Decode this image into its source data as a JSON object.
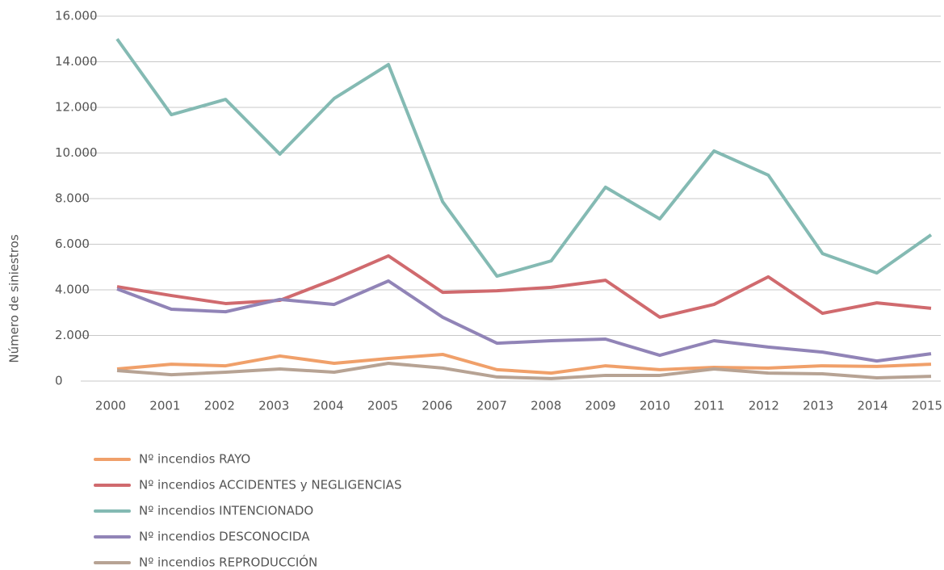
{
  "chart_data": {
    "type": "line",
    "y_label": "Número de siniestros",
    "categories": [
      "2000",
      "2001",
      "2002",
      "2003",
      "2004",
      "2005",
      "2006",
      "2007",
      "2008",
      "2009",
      "2010",
      "2011",
      "2012",
      "2013",
      "2014",
      "2015"
    ],
    "ylim": [
      0,
      16000
    ],
    "yticks": [
      0,
      {
        "value": 2000,
        "label": "2.000"
      },
      {
        "value": 4000,
        "label": "4.000"
      },
      {
        "value": 6000,
        "label": "6.000"
      },
      {
        "value": 8000,
        "label": "8.000"
      },
      {
        "value": 10000,
        "label": "10.000"
      },
      {
        "value": 12000,
        "label": "12.000"
      },
      {
        "value": 14000,
        "label": "14.000"
      },
      {
        "value": 16000,
        "label": "16.000"
      }
    ],
    "grid": true,
    "legend": "bottom",
    "series": [
      {
        "name": "Nº incendios RAYO",
        "color": "#f0a06a",
        "values": [
          530,
          740,
          670,
          1100,
          780,
          990,
          1170,
          500,
          350,
          670,
          500,
          600,
          570,
          670,
          640,
          740
        ]
      },
      {
        "name": "Nº incendios ACCIDENTES y NEGLIGENCIAS",
        "color": "#d06a6e",
        "values": [
          4140,
          3750,
          3400,
          3540,
          4460,
          5490,
          3890,
          3960,
          4110,
          4420,
          2800,
          3360,
          4570,
          2970,
          3430,
          3190
        ]
      },
      {
        "name": "Nº incendios INTENCIONADO",
        "color": "#84bab3",
        "values": [
          15000,
          11680,
          12350,
          9950,
          12390,
          13880,
          7860,
          4600,
          5270,
          8500,
          7110,
          10090,
          9030,
          5590,
          4740,
          6410
        ]
      },
      {
        "name": "Nº incendios DESCONOCIDA",
        "color": "#9184b7",
        "values": [
          4040,
          3150,
          3040,
          3580,
          3360,
          4390,
          2800,
          1660,
          1770,
          1840,
          1130,
          1770,
          1490,
          1270,
          880,
          1200
        ]
      },
      {
        "name": "Nº incendios REPRODUCCIÓN",
        "color": "#b7a394",
        "values": [
          460,
          280,
          390,
          530,
          390,
          780,
          570,
          180,
          110,
          250,
          250,
          530,
          350,
          320,
          140,
          210
        ]
      }
    ]
  }
}
